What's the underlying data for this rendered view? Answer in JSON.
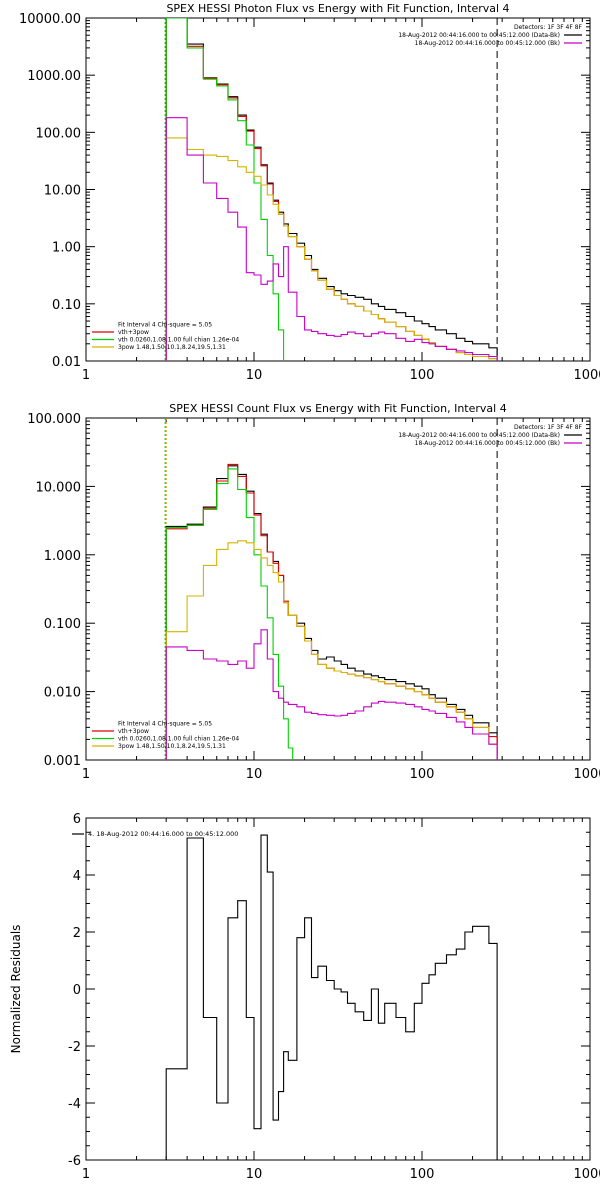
{
  "chart_data": [
    {
      "type": "line",
      "title": "SPEX HESSI Photon Flux vs Energy with Fit Function, Interval 4",
      "xscale": "log",
      "yscale": "log",
      "xlim": [
        1,
        1000
      ],
      "ylim": [
        0.01,
        10000
      ],
      "x_ticks": [
        1,
        10,
        100,
        1000
      ],
      "y_ticks": [
        0.01,
        0.1,
        1,
        10,
        100,
        1000,
        10000
      ],
      "x_tick_labels": [
        "1",
        "10",
        "100",
        "1000"
      ],
      "y_tick_labels": [
        "0.01",
        "0.10",
        "1.00",
        "10.00",
        "100.00",
        "1000.00",
        "10000.00"
      ],
      "grid": false,
      "vlines": [
        {
          "x": 3,
          "style": "dotted-green-orange"
        },
        {
          "x": 280,
          "style": "dashed"
        }
      ],
      "top_legend": {
        "placement": "top-right",
        "entries": [
          {
            "text": "Detectors: 1F 3F 4F 8F",
            "color": ""
          },
          {
            "text": "18-Aug-2012 00:44:16.000 to 00:45:12.000 (Data-Bk)",
            "color": "#000000"
          },
          {
            "text": "18-Aug-2012 00:44:16.000 to 00:45:12.000 (Bk)",
            "color": "#c800c8"
          }
        ]
      },
      "bottom_legend": {
        "placement": "bottom-left",
        "entries": [
          {
            "text": "Fit Interval 4   Chi-square = 5.05",
            "color": ""
          },
          {
            "text": "vth+3pow",
            "color": "#e00000"
          },
          {
            "text": "vth 0.0260,1.08,1.00  full chian 1.26e-04",
            "color": "#00d000"
          },
          {
            "text": "3pow 1.48,1.50,10.1,8.24,19.5,1.31",
            "color": "#d4b400"
          }
        ]
      },
      "series": [
        {
          "key": "data",
          "color": "#000000",
          "width": 1.1,
          "x": [
            3,
            4,
            5,
            6,
            7,
            8,
            9,
            10,
            11,
            12,
            13,
            14,
            15,
            16,
            18,
            20,
            22,
            24,
            27,
            30,
            33,
            36,
            40,
            45,
            50,
            55,
            60,
            70,
            80,
            90,
            100,
            110,
            120,
            140,
            160,
            180,
            200,
            250
          ],
          "y": [
            10000,
            3500,
            900,
            700,
            420,
            200,
            110,
            55,
            27,
            13,
            6.5,
            4.0,
            2.5,
            1.7,
            1.15,
            0.7,
            0.4,
            0.28,
            0.2,
            0.17,
            0.15,
            0.14,
            0.13,
            0.12,
            0.1,
            0.09,
            0.08,
            0.07,
            0.06,
            0.05,
            0.045,
            0.04,
            0.035,
            0.03,
            0.025,
            0.022,
            0.02,
            0.017
          ],
          "x_end": 280
        },
        {
          "key": "fit",
          "color": "#e00000",
          "width": 1.1,
          "x": [
            3,
            4,
            5,
            6,
            7,
            8,
            9,
            10,
            11,
            12,
            13,
            14,
            15,
            16,
            18,
            20,
            22,
            24,
            27,
            30,
            33,
            36,
            40,
            45,
            50,
            55,
            60,
            70,
            80,
            90,
            100,
            110,
            120,
            140,
            160,
            180,
            200,
            250
          ],
          "y": [
            10000,
            3200,
            880,
            680,
            400,
            190,
            105,
            52,
            26,
            12.5,
            6.2,
            3.7,
            2.3,
            1.5,
            1.0,
            0.6,
            0.38,
            0.26,
            0.18,
            0.14,
            0.12,
            0.1,
            0.09,
            0.075,
            0.065,
            0.055,
            0.048,
            0.04,
            0.033,
            0.028,
            0.024,
            0.021,
            0.018,
            0.016,
            0.014,
            0.013,
            0.012,
            0.011
          ],
          "x_end": 280
        },
        {
          "key": "thermal",
          "color": "#00d000",
          "width": 1.1,
          "x": [
            3,
            4,
            5,
            6,
            7,
            8,
            9,
            10,
            11,
            12,
            13,
            14,
            15
          ],
          "y": [
            10000,
            3000,
            850,
            650,
            370,
            160,
            60,
            13,
            3.0,
            0.7,
            0.15,
            0.035,
            0.008
          ],
          "x_end": 16
        },
        {
          "key": "powerlaw",
          "color": "#d4b400",
          "width": 1.1,
          "x": [
            3,
            4,
            5,
            6,
            7,
            8,
            9,
            10,
            11,
            12,
            13,
            14,
            15,
            16,
            18,
            20,
            22,
            24,
            27,
            30,
            33,
            36,
            40,
            45,
            50,
            55,
            60,
            70,
            80,
            90,
            100,
            110,
            120,
            140,
            160,
            180,
            200,
            250
          ],
          "y": [
            80,
            50,
            40,
            38,
            32,
            25,
            20,
            17,
            12,
            8.0,
            5.5,
            3.7,
            2.3,
            1.5,
            1.0,
            0.6,
            0.38,
            0.26,
            0.18,
            0.14,
            0.12,
            0.1,
            0.09,
            0.075,
            0.065,
            0.055,
            0.048,
            0.04,
            0.033,
            0.028,
            0.024,
            0.021,
            0.018,
            0.016,
            0.014,
            0.013,
            0.012,
            0.011
          ],
          "x_end": 280
        },
        {
          "key": "background",
          "color": "#c800c8",
          "width": 1.1,
          "x": [
            3,
            4,
            5,
            6,
            7,
            8,
            9,
            10,
            11,
            12,
            13,
            14,
            15,
            16,
            18,
            20,
            22,
            24,
            27,
            30,
            33,
            36,
            40,
            45,
            50,
            55,
            60,
            70,
            80,
            90,
            100,
            110,
            120,
            140,
            160,
            180,
            200,
            250
          ],
          "y": [
            180,
            40,
            13,
            7.0,
            4.0,
            2.2,
            0.35,
            0.32,
            0.22,
            0.25,
            0.5,
            0.3,
            1.0,
            0.16,
            0.06,
            0.035,
            0.033,
            0.03,
            0.028,
            0.027,
            0.029,
            0.032,
            0.03,
            0.027,
            0.03,
            0.032,
            0.03,
            0.025,
            0.022,
            0.024,
            0.021,
            0.02,
            0.018,
            0.016,
            0.015,
            0.014,
            0.013,
            0.012
          ],
          "x_end": 280
        }
      ]
    },
    {
      "type": "line",
      "title": "SPEX HESSI Count Flux vs Energy with Fit Function, Interval 4",
      "xscale": "log",
      "yscale": "log",
      "xlim": [
        1,
        1000
      ],
      "ylim": [
        0.001,
        100
      ],
      "x_ticks": [
        1,
        10,
        100,
        1000
      ],
      "y_ticks": [
        0.001,
        0.01,
        0.1,
        1,
        10,
        100
      ],
      "x_tick_labels": [
        "1",
        "10",
        "100",
        "1000"
      ],
      "y_tick_labels": [
        "0.001",
        "0.010",
        "0.100",
        "1.000",
        "10.000",
        "100.000"
      ],
      "grid": false,
      "vlines": [
        {
          "x": 3,
          "style": "dotted-green-orange"
        },
        {
          "x": 280,
          "style": "dashed"
        }
      ],
      "top_legend": {
        "placement": "top-right",
        "entries": [
          {
            "text": "Detectors: 1F 3F 4F 8F",
            "color": ""
          },
          {
            "text": "18-Aug-2012 00:44:16.000 to 00:45:12.000 (Data-Bk)",
            "color": "#000000"
          },
          {
            "text": "18-Aug-2012 00:44:16.000 to 00:45:12.000 (Bk)",
            "color": "#c800c8"
          }
        ]
      },
      "bottom_legend": {
        "placement": "bottom-left",
        "entries": [
          {
            "text": "Fit Interval 4   Chi-square = 5.05",
            "color": ""
          },
          {
            "text": "vth+3pow",
            "color": "#e00000"
          },
          {
            "text": "vth 0.0260,1.08,1.00  full chian 1.26e-04",
            "color": "#00d000"
          },
          {
            "text": "3pow 1.48,1.50,10.1,8.24,19.5,1.31",
            "color": "#d4b400"
          }
        ]
      },
      "series": [
        {
          "key": "data",
          "color": "#000000",
          "width": 1.1,
          "x": [
            3,
            4,
            5,
            6,
            7,
            8,
            9,
            10,
            11,
            12,
            13,
            14,
            15,
            16,
            18,
            20,
            22,
            24,
            27,
            30,
            33,
            36,
            40,
            45,
            50,
            55,
            60,
            70,
            80,
            90,
            100,
            110,
            120,
            140,
            160,
            180,
            200,
            250
          ],
          "y": [
            2.6,
            2.8,
            5.0,
            13,
            20,
            15,
            8.5,
            4.0,
            2.0,
            1.1,
            0.8,
            0.5,
            0.2,
            0.13,
            0.1,
            0.06,
            0.04,
            0.03,
            0.032,
            0.028,
            0.025,
            0.022,
            0.02,
            0.018,
            0.017,
            0.016,
            0.015,
            0.014,
            0.013,
            0.012,
            0.011,
            0.009,
            0.008,
            0.0065,
            0.0055,
            0.0045,
            0.0035,
            0.0025
          ],
          "x_end": 280
        },
        {
          "key": "fit",
          "color": "#e00000",
          "width": 1.1,
          "x": [
            3,
            4,
            5,
            6,
            7,
            8,
            9,
            10,
            11,
            12,
            13,
            14,
            15,
            16,
            18,
            20,
            22,
            24,
            27,
            30,
            33,
            36,
            40,
            45,
            50,
            55,
            60,
            70,
            80,
            90,
            100,
            110,
            120,
            140,
            160,
            180,
            200,
            250
          ],
          "y": [
            2.4,
            2.7,
            4.8,
            12,
            21,
            14,
            8.0,
            3.8,
            1.9,
            1.1,
            0.75,
            0.5,
            0.21,
            0.13,
            0.09,
            0.055,
            0.035,
            0.025,
            0.022,
            0.02,
            0.019,
            0.018,
            0.017,
            0.016,
            0.015,
            0.014,
            0.013,
            0.012,
            0.011,
            0.01,
            0.009,
            0.008,
            0.007,
            0.006,
            0.005,
            0.004,
            0.003,
            0.0022
          ],
          "x_end": 280
        },
        {
          "key": "thermal",
          "color": "#00d000",
          "width": 1.1,
          "x": [
            3,
            4,
            5,
            6,
            7,
            8,
            9,
            10,
            11,
            12,
            13,
            14,
            15,
            16
          ],
          "y": [
            2.5,
            2.7,
            4.6,
            11,
            18,
            9.0,
            3.5,
            1.0,
            0.35,
            0.12,
            0.035,
            0.012,
            0.004,
            0.0015
          ],
          "x_end": 17
        },
        {
          "key": "powerlaw",
          "color": "#d4b400",
          "width": 1.1,
          "x": [
            3,
            4,
            5,
            6,
            7,
            8,
            9,
            10,
            11,
            12,
            13,
            14,
            15,
            16,
            18,
            20,
            22,
            24,
            27,
            30,
            33,
            36,
            40,
            45,
            50,
            55,
            60,
            70,
            80,
            90,
            100,
            110,
            120,
            140,
            160,
            180,
            200,
            250
          ],
          "y": [
            0.075,
            0.25,
            0.7,
            1.2,
            1.5,
            1.6,
            1.5,
            1.2,
            0.9,
            0.7,
            0.55,
            0.4,
            0.2,
            0.13,
            0.09,
            0.055,
            0.035,
            0.025,
            0.022,
            0.02,
            0.019,
            0.018,
            0.017,
            0.016,
            0.015,
            0.014,
            0.013,
            0.012,
            0.011,
            0.01,
            0.009,
            0.008,
            0.007,
            0.006,
            0.005,
            0.004,
            0.003,
            0.0017
          ],
          "x_end": 280
        },
        {
          "key": "background",
          "color": "#c800c8",
          "width": 1.1,
          "x": [
            3,
            4,
            5,
            6,
            7,
            8,
            9,
            10,
            11,
            12,
            13,
            14,
            15,
            16,
            18,
            20,
            22,
            24,
            27,
            30,
            33,
            36,
            40,
            45,
            50,
            55,
            60,
            70,
            80,
            90,
            100,
            110,
            120,
            140,
            160,
            180,
            200,
            250
          ],
          "y": [
            0.045,
            0.04,
            0.03,
            0.028,
            0.025,
            0.028,
            0.022,
            0.05,
            0.08,
            0.03,
            0.01,
            0.008,
            0.007,
            0.0065,
            0.006,
            0.005,
            0.0048,
            0.0046,
            0.0045,
            0.0044,
            0.0045,
            0.0048,
            0.0052,
            0.006,
            0.0068,
            0.0072,
            0.007,
            0.0068,
            0.0065,
            0.006,
            0.0055,
            0.0052,
            0.0048,
            0.0042,
            0.0036,
            0.003,
            0.0024,
            0.0017
          ],
          "x_end": 280
        }
      ]
    },
    {
      "type": "line",
      "title": "",
      "ylabel": "Normalized Residuals",
      "xscale": "log",
      "yscale": "linear",
      "xlim": [
        1,
        1000
      ],
      "ylim": [
        -6,
        6
      ],
      "x_ticks": [
        1,
        10,
        100,
        1000
      ],
      "y_ticks": [
        -6,
        -4,
        -2,
        0,
        2,
        4,
        6
      ],
      "x_tick_labels": [
        "1",
        "10",
        "100",
        "1000"
      ],
      "y_tick_labels": [
        "-6",
        "-4",
        "-2",
        "0",
        "2",
        "4",
        "6"
      ],
      "grid": false,
      "legend": {
        "placement": "top-left",
        "entries": [
          {
            "text": "4. 18-Aug-2012 00:44:16.000 to 00:45:12.000",
            "color": "#000000"
          }
        ]
      },
      "series": [
        {
          "key": "residuals",
          "color": "#000000",
          "width": 1.1,
          "x": [
            3,
            4,
            5,
            6,
            7,
            8,
            9,
            10,
            11,
            12,
            13,
            14,
            15,
            16,
            18,
            20,
            22,
            24,
            27,
            30,
            33,
            36,
            40,
            45,
            50,
            55,
            60,
            70,
            80,
            90,
            100,
            110,
            120,
            140,
            160,
            180,
            200,
            250
          ],
          "y": [
            -2.8,
            5.3,
            -1.0,
            -4.0,
            2.5,
            3.1,
            -1.0,
            -4.9,
            5.4,
            4.1,
            -4.6,
            -3.6,
            -2.2,
            -2.5,
            1.8,
            2.5,
            0.4,
            0.8,
            0.3,
            0.0,
            -0.1,
            -0.5,
            -0.8,
            -1.1,
            0.0,
            -1.2,
            -0.5,
            -1.0,
            -1.5,
            -0.5,
            0.2,
            0.5,
            0.9,
            1.2,
            1.4,
            2.0,
            2.2,
            1.6
          ],
          "x_end": 280,
          "to_floor": true
        }
      ]
    }
  ]
}
